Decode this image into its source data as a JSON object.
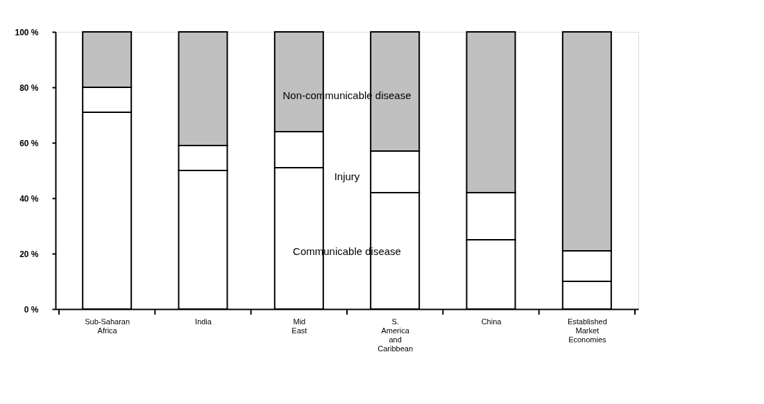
{
  "chart_data": {
    "type": "bar",
    "stacked": true,
    "categories": [
      "Sub-Saharan Africa",
      "India",
      "Mid East",
      "S. America and Caribbean",
      "China",
      "Established Market Economies"
    ],
    "series": [
      {
        "name": "Communicable disease",
        "color": "#ffffff",
        "values": [
          71,
          50,
          51,
          42,
          25,
          10
        ]
      },
      {
        "name": "Injury",
        "color": "#ffffff",
        "values": [
          9,
          9,
          13,
          15,
          17,
          11
        ]
      },
      {
        "name": "Non-communicable disease",
        "color": "#c0c0c0",
        "values": [
          20,
          41,
          36,
          43,
          58,
          79
        ]
      }
    ],
    "ylim": [
      0,
      100
    ],
    "yticks": [
      {
        "value": 0,
        "label": "0 %"
      },
      {
        "value": 20,
        "label": "20 %"
      },
      {
        "value": 40,
        "label": "40 %"
      },
      {
        "value": 60,
        "label": "60 %"
      },
      {
        "value": 80,
        "label": "80 %"
      },
      {
        "value": 100,
        "label": "100 %"
      }
    ],
    "grid": false
  }
}
